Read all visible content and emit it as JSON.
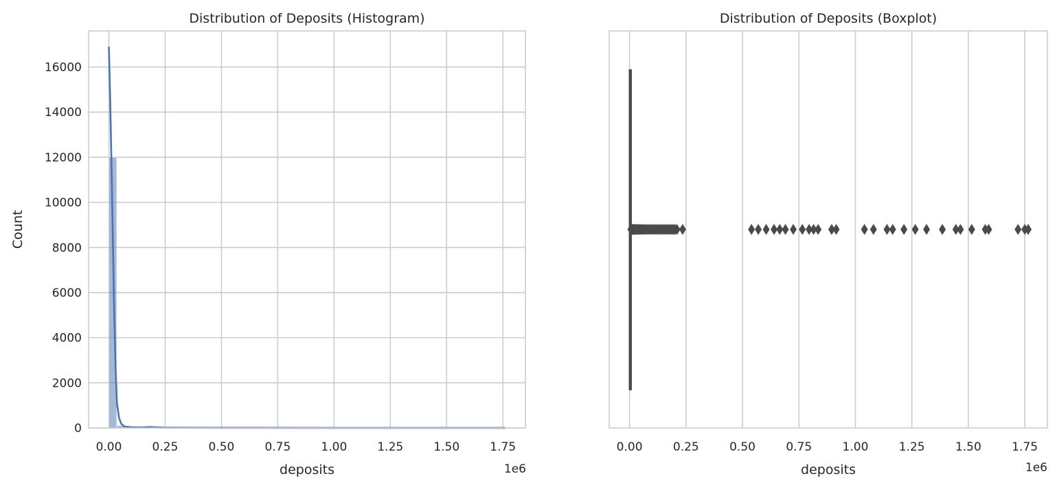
{
  "chart_data": [
    {
      "type": "bar",
      "subtype": "histogram_with_kde",
      "title": "Distribution of Deposits (Histogram)",
      "xlabel": "deposits",
      "ylabel": "Count",
      "x_offset_text": "1e6",
      "xlim": [
        -0.09,
        1.85
      ],
      "ylim": [
        0,
        17600
      ],
      "xticks": [
        0.0,
        0.25,
        0.5,
        0.75,
        1.0,
        1.25,
        1.5,
        1.75
      ],
      "xtick_labels": [
        "0.00",
        "0.25",
        "0.50",
        "0.75",
        "1.00",
        "1.25",
        "1.50",
        "1.75"
      ],
      "yticks": [
        0,
        2000,
        4000,
        6000,
        8000,
        10000,
        12000,
        14000,
        16000
      ],
      "ytick_labels": [
        "0",
        "2000",
        "4000",
        "6000",
        "8000",
        "10000",
        "12000",
        "14000",
        "16000"
      ],
      "grid": true,
      "bar_color": "#4c72b0",
      "bar_opacity": 0.5,
      "line_color": "#4c72b0",
      "bins": [
        {
          "x0": 0.0,
          "x1": 0.035,
          "count": 12000
        },
        {
          "x0": 0.035,
          "x1": 0.07,
          "count": 100
        },
        {
          "x0": 0.07,
          "x1": 0.105,
          "count": 30
        },
        {
          "x0": 0.105,
          "x1": 0.14,
          "count": 15
        },
        {
          "x0": 0.14,
          "x1": 0.175,
          "count": 10
        },
        {
          "x0": 0.175,
          "x1": 0.21,
          "count": 8
        },
        {
          "x0": 0.21,
          "x1": 0.245,
          "count": 5
        }
      ],
      "kde": {
        "x": [
          0.0,
          0.006,
          0.012,
          0.018,
          0.024,
          0.03,
          0.036,
          0.045,
          0.055,
          0.07,
          0.1,
          0.15,
          0.18,
          0.25,
          0.5,
          1.0,
          1.5,
          1.76
        ],
        "y": [
          16900,
          14500,
          11500,
          8200,
          5000,
          2600,
          1100,
          450,
          180,
          60,
          30,
          20,
          40,
          10,
          5,
          3,
          2,
          1
        ]
      }
    },
    {
      "type": "boxplot",
      "title": "Distribution of Deposits (Boxplot)",
      "xlabel": "deposits",
      "x_offset_text": "1e6",
      "xlim": [
        -0.09,
        1.85
      ],
      "xticks": [
        0.0,
        0.25,
        0.5,
        0.75,
        1.0,
        1.25,
        1.5,
        1.75
      ],
      "xtick_labels": [
        "0.00",
        "0.25",
        "0.50",
        "0.75",
        "1.00",
        "1.25",
        "1.50",
        "1.75"
      ],
      "grid": true,
      "box_color": "#4c72b0",
      "line_color": "#4a4a4a",
      "q1": 0.0005,
      "median": 0.001,
      "q3": 0.002,
      "whisker_low": 0.0,
      "whisker_high": 0.005,
      "outliers": [
        0.006,
        0.008,
        0.01,
        0.012,
        0.014,
        0.016,
        0.018,
        0.02,
        0.023,
        0.026,
        0.03,
        0.034,
        0.038,
        0.042,
        0.046,
        0.05,
        0.055,
        0.06,
        0.065,
        0.07,
        0.076,
        0.082,
        0.088,
        0.094,
        0.1,
        0.106,
        0.112,
        0.118,
        0.124,
        0.13,
        0.136,
        0.142,
        0.148,
        0.154,
        0.16,
        0.166,
        0.172,
        0.178,
        0.184,
        0.19,
        0.196,
        0.202,
        0.21,
        0.235,
        0.54,
        0.57,
        0.605,
        0.64,
        0.665,
        0.69,
        0.725,
        0.765,
        0.795,
        0.815,
        0.835,
        0.895,
        0.915,
        1.04,
        1.08,
        1.14,
        1.165,
        1.215,
        1.265,
        1.315,
        1.385,
        1.445,
        1.465,
        1.515,
        1.575,
        1.59,
        1.72,
        1.75,
        1.765
      ]
    }
  ]
}
